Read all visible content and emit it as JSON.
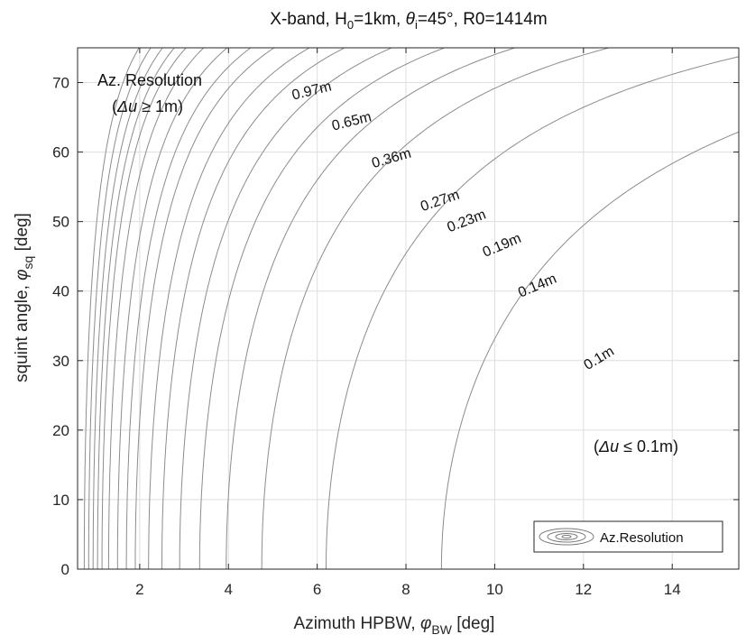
{
  "chart_data": {
    "type": "contour",
    "title": "X-band, H₀=1km, θᵢ=45°, R0=1414m",
    "xlabel": "Azimuth HPBW, φ_BW [deg]",
    "ylabel": "squint angle, φ_sq [deg]",
    "xlim": [
      0.6,
      15.5
    ],
    "ylim": [
      0,
      75
    ],
    "xticks": [
      2,
      4,
      6,
      8,
      10,
      12,
      14
    ],
    "yticks": [
      0,
      10,
      20,
      30,
      40,
      50,
      60,
      70
    ],
    "grid": true,
    "legend": {
      "label": "Az.Resolution",
      "position": "bottom-right"
    },
    "contour_levels_m": [
      0.1,
      0.14,
      0.19,
      0.23,
      0.27,
      0.36,
      0.65,
      0.97
    ],
    "contour_labels": [
      {
        "text": "0.97m",
        "x": 5.9,
        "y": 68.2,
        "angle": -14
      },
      {
        "text": "0.65m",
        "x": 6.8,
        "y": 63.8,
        "angle": -14
      },
      {
        "text": "0.36m",
        "x": 7.7,
        "y": 58.5,
        "angle": -16
      },
      {
        "text": "0.27m",
        "x": 8.8,
        "y": 52.4,
        "angle": -19
      },
      {
        "text": "0.23m",
        "x": 9.4,
        "y": 49.5,
        "angle": -21
      },
      {
        "text": "0.19m",
        "x": 10.2,
        "y": 46.0,
        "angle": -23
      },
      {
        "text": "0.14m",
        "x": 11.0,
        "y": 40.2,
        "angle": -23
      },
      {
        "text": "0.1m",
        "x": 12.4,
        "y": 29.8,
        "angle": -31
      }
    ],
    "annotations": [
      {
        "line1": "Az. Resolution",
        "line2": "(Δu ≥ 1m)",
        "position": "top-left"
      },
      {
        "text": "(Δu ≤ 0.1m)",
        "position": "bottom-right"
      }
    ],
    "contour_x_at_zero_squint_deg": [
      0.75,
      0.85,
      0.95,
      1.05,
      1.15,
      1.3,
      1.5,
      1.7,
      1.9,
      2.2,
      2.5,
      2.9,
      3.35,
      3.95,
      4.75,
      6.2,
      8.8
    ]
  }
}
